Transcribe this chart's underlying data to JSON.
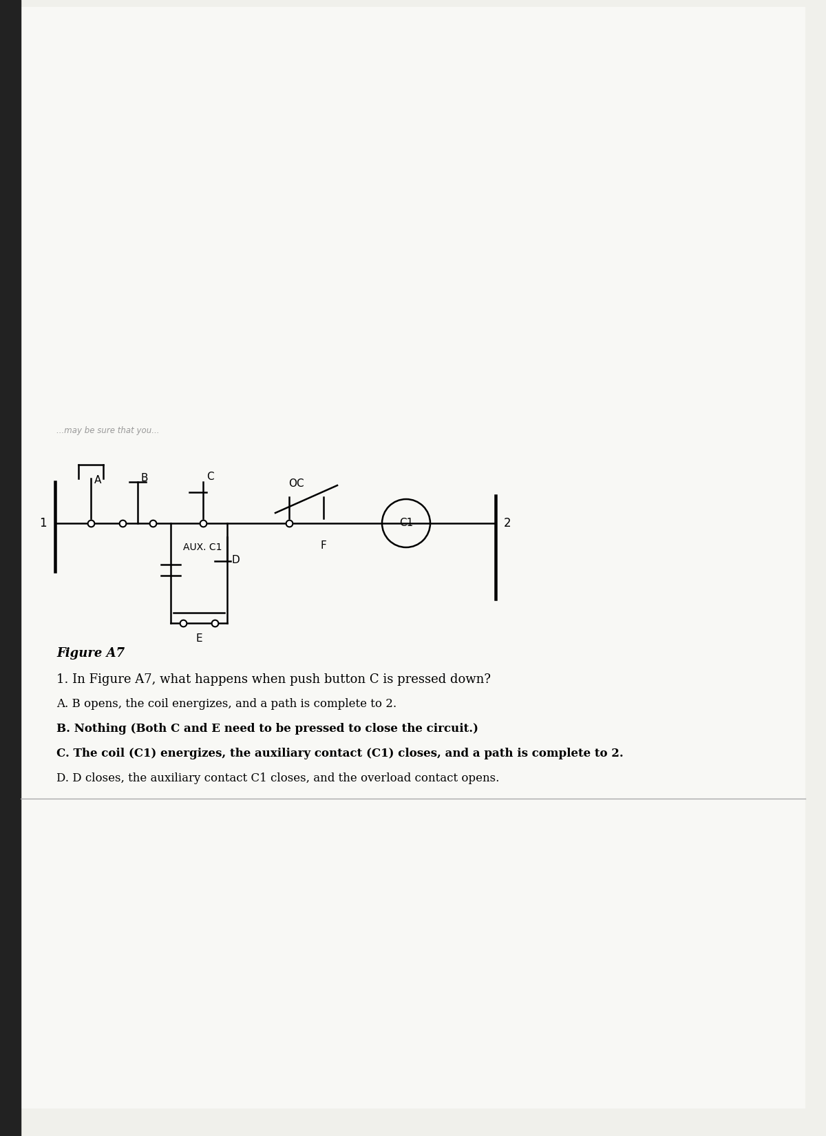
{
  "bg_color": "#f5f5f0",
  "line_color": "#000000",
  "figure_label": "Figure A7",
  "question": "1. In Figure A7, what happens when push button C is pressed down?",
  "answer_a": "A. B opens, the coil energizes, and a path is complete to 2.",
  "answer_b": "B. Nothing (Both C and E need to be pressed to close the circuit.)",
  "answer_c": "C. The coil (C1) energizes, the auxiliary contact (C1) closes, and a path is complete to 2.",
  "answer_d": "D. D closes, the auxiliary contact C1 closes, and the overload contact opens.",
  "faded_text": "...may be sure that you...",
  "page_bg": "#f0f0eb",
  "white_page_bg": "#ffffff"
}
